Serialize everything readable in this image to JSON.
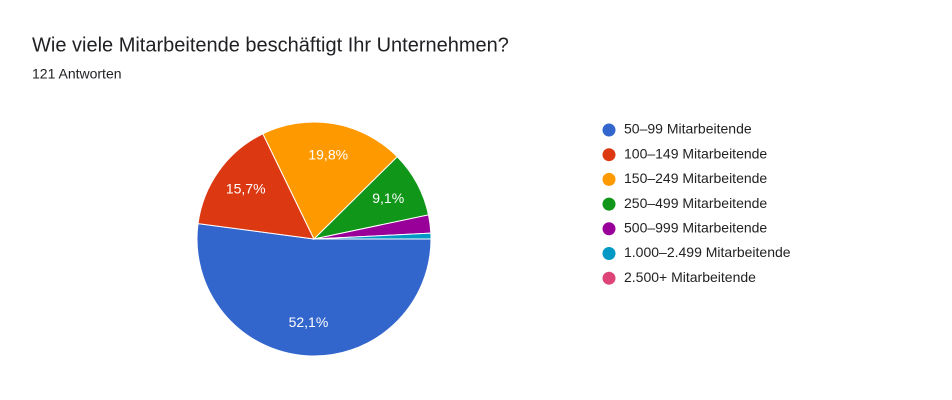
{
  "chart_data": {
    "type": "pie",
    "title": "Wie viele Mitarbeitende beschäftigt Ihr Unternehmen?",
    "subtitle": "121 Antworten",
    "categories": [
      "50–99 Mitarbeitende",
      "100–149 Mitarbeitende",
      "150–249 Mitarbeitende",
      "250–499 Mitarbeitende",
      "500–999 Mitarbeitende",
      "1.000–2.499 Mitarbeitende",
      "2.500+ Mitarbeitende"
    ],
    "values": [
      52.1,
      15.7,
      19.8,
      9.1,
      2.5,
      0.8,
      0
    ],
    "value_labels": [
      "52,1%",
      "15,7%",
      "19,8%",
      "9,1%",
      null,
      null,
      null
    ],
    "colors": [
      "#3366cc",
      "#dc3912",
      "#ff9900",
      "#109618",
      "#990099",
      "#0099c6",
      "#dd4477"
    ],
    "legend": "right"
  }
}
